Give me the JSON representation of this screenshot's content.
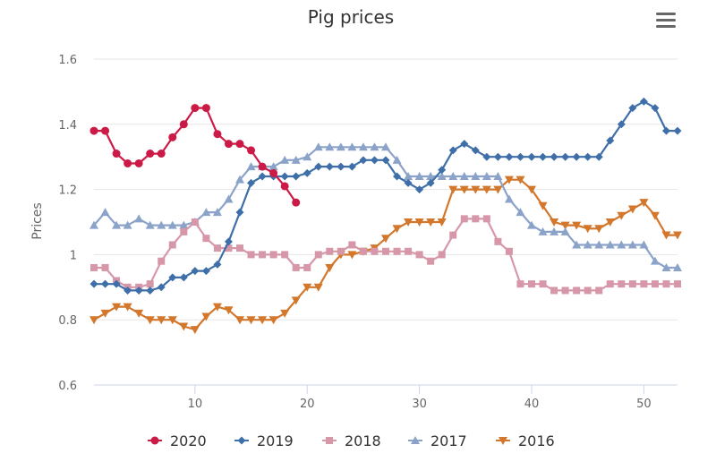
{
  "chart_data": {
    "type": "line",
    "title": "Pig prices",
    "xlabel": "",
    "ylabel": "Prices",
    "xlim": [
      1,
      53
    ],
    "ylim": [
      0.6,
      1.6
    ],
    "x_ticks": [
      10,
      20,
      30,
      40,
      50
    ],
    "y_ticks": [
      0.6,
      0.8,
      1,
      1.2,
      1.4,
      1.6
    ],
    "y_tick_labels": [
      "0.6",
      "0.8",
      "1",
      "1.2",
      "1.4",
      "1.6"
    ],
    "grid": "horizontal",
    "legend_position": "bottom",
    "series": [
      {
        "name": "2020",
        "color": "#cc1a47",
        "marker": "circle",
        "values": [
          1.38,
          1.38,
          1.31,
          1.28,
          1.28,
          1.31,
          1.31,
          1.36,
          1.4,
          1.45,
          1.45,
          1.37,
          1.34,
          1.34,
          1.32,
          1.27,
          1.25,
          1.21,
          1.16
        ]
      },
      {
        "name": "2019",
        "color": "#3e6fa8",
        "marker": "diamond",
        "values": [
          0.91,
          0.91,
          0.91,
          0.89,
          0.89,
          0.89,
          0.9,
          0.93,
          0.93,
          0.95,
          0.95,
          0.97,
          1.04,
          1.13,
          1.22,
          1.24,
          1.24,
          1.24,
          1.24,
          1.25,
          1.27,
          1.27,
          1.27,
          1.27,
          1.29,
          1.29,
          1.29,
          1.24,
          1.22,
          1.2,
          1.22,
          1.26,
          1.32,
          1.34,
          1.32,
          1.3,
          1.3,
          1.3,
          1.3,
          1.3,
          1.3,
          1.3,
          1.3,
          1.3,
          1.3,
          1.3,
          1.35,
          1.4,
          1.45,
          1.47,
          1.45,
          1.38,
          1.38
        ]
      },
      {
        "name": "2018",
        "color": "#d697a9",
        "marker": "square",
        "values": [
          0.96,
          0.96,
          0.92,
          0.9,
          0.9,
          0.91,
          0.98,
          1.03,
          1.07,
          1.1,
          1.05,
          1.02,
          1.02,
          1.02,
          1.0,
          1.0,
          1.0,
          1.0,
          0.96,
          0.96,
          1.0,
          1.01,
          1.01,
          1.03,
          1.01,
          1.01,
          1.01,
          1.01,
          1.01,
          1.0,
          0.98,
          1.0,
          1.06,
          1.11,
          1.11,
          1.11,
          1.04,
          1.01,
          0.91,
          0.91,
          0.91,
          0.89,
          0.89,
          0.89,
          0.89,
          0.89,
          0.91,
          0.91,
          0.91,
          0.91,
          0.91,
          0.91,
          0.91
        ]
      },
      {
        "name": "2017",
        "color": "#8ca3c9",
        "marker": "triangle-up",
        "values": [
          1.09,
          1.13,
          1.09,
          1.09,
          1.11,
          1.09,
          1.09,
          1.09,
          1.09,
          1.1,
          1.13,
          1.13,
          1.17,
          1.23,
          1.27,
          1.27,
          1.27,
          1.29,
          1.29,
          1.3,
          1.33,
          1.33,
          1.33,
          1.33,
          1.33,
          1.33,
          1.33,
          1.29,
          1.24,
          1.24,
          1.24,
          1.24,
          1.24,
          1.24,
          1.24,
          1.24,
          1.24,
          1.17,
          1.13,
          1.09,
          1.07,
          1.07,
          1.07,
          1.03,
          1.03,
          1.03,
          1.03,
          1.03,
          1.03,
          1.03,
          0.98,
          0.96,
          0.96
        ]
      },
      {
        "name": "2016",
        "color": "#d2772b",
        "marker": "triangle-down",
        "values": [
          0.8,
          0.82,
          0.84,
          0.84,
          0.82,
          0.8,
          0.8,
          0.8,
          0.78,
          0.77,
          0.81,
          0.84,
          0.83,
          0.8,
          0.8,
          0.8,
          0.8,
          0.82,
          0.86,
          0.9,
          0.9,
          0.96,
          1.0,
          1.0,
          1.01,
          1.02,
          1.05,
          1.08,
          1.1,
          1.1,
          1.1,
          1.1,
          1.2,
          1.2,
          1.2,
          1.2,
          1.2,
          1.23,
          1.23,
          1.2,
          1.15,
          1.1,
          1.09,
          1.09,
          1.08,
          1.08,
          1.1,
          1.12,
          1.14,
          1.16,
          1.12,
          1.06,
          1.06
        ]
      }
    ]
  },
  "menu": {
    "icon": "hamburger-menu-icon"
  }
}
